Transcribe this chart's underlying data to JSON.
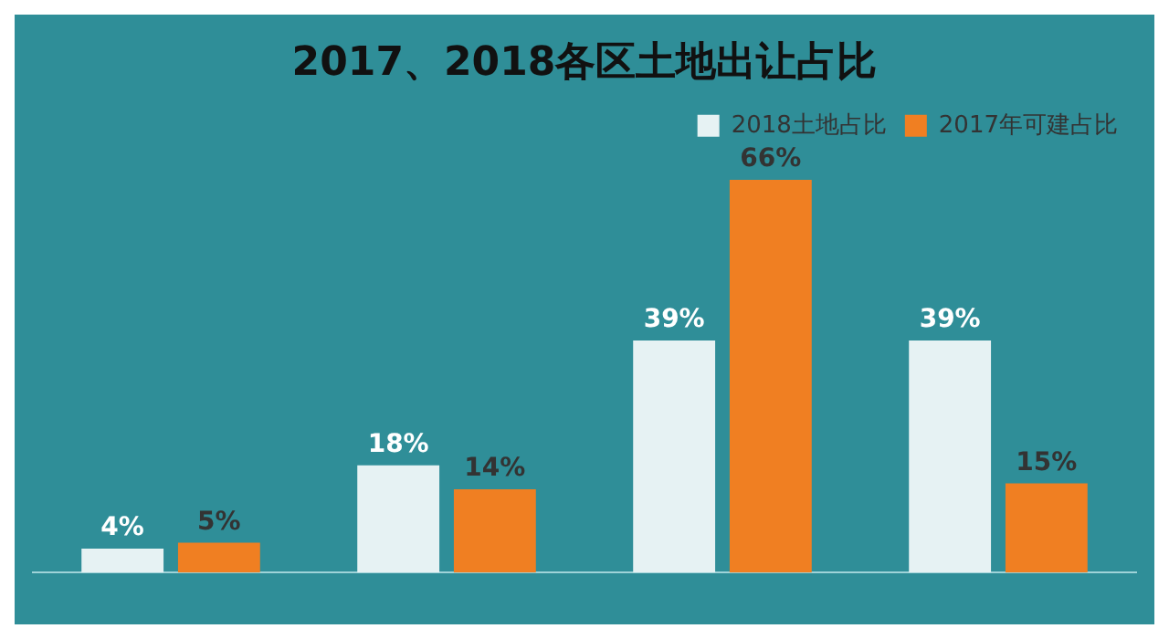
{
  "chart_data": {
    "type": "bar",
    "title": "2017、2018各区土地出让占比",
    "categories": [
      null,
      null,
      null,
      null
    ],
    "series": [
      {
        "name": "2018土地占比",
        "color": "#e6f2f3",
        "values": [
          4,
          18,
          39,
          39
        ],
        "value_labels": [
          "4%",
          "18%",
          "39%",
          "39%"
        ]
      },
      {
        "name": "2017年可建占比",
        "color": "#f07f22",
        "values": [
          5,
          14,
          66,
          15
        ],
        "value_labels": [
          "5%",
          "14%",
          "66%",
          "15%"
        ]
      }
    ],
    "legend": "top right",
    "grid": false
  }
}
